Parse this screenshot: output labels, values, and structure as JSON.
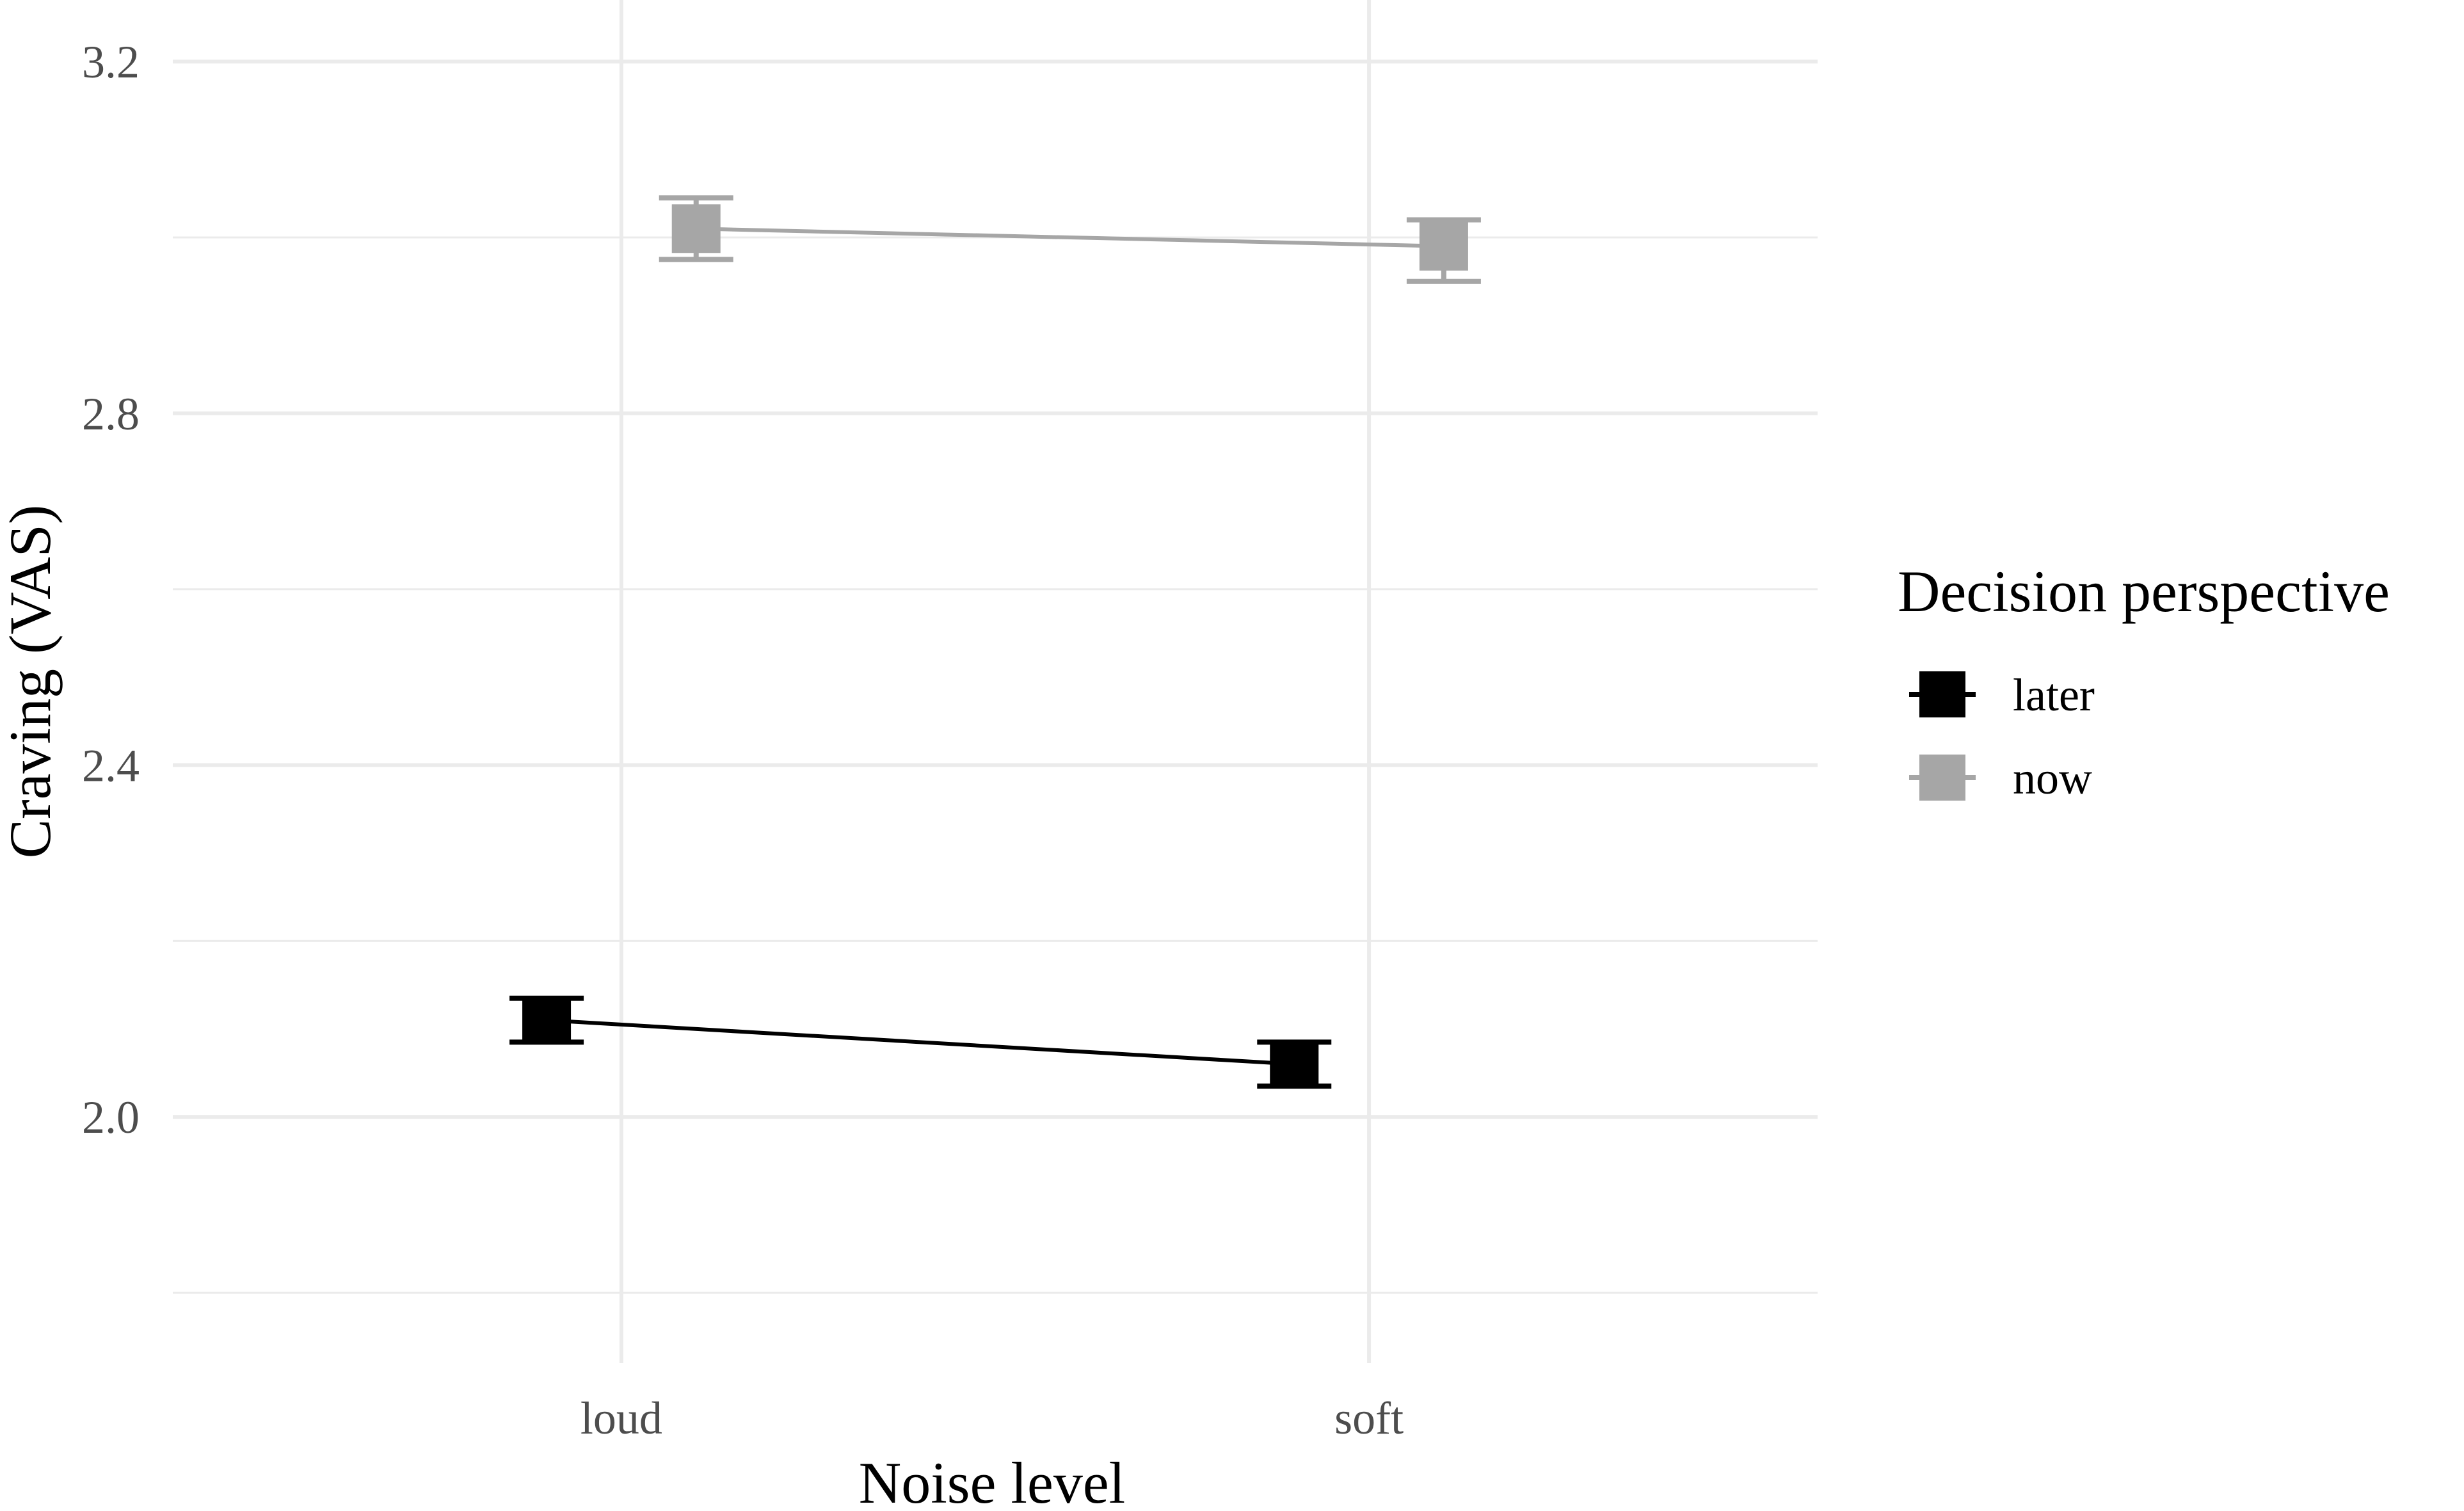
{
  "chart_data": {
    "type": "line",
    "xlabel": "Noise level",
    "ylabel": "Craving (VAS)",
    "categories": [
      "loud",
      "soft"
    ],
    "ylim": [
      1.72,
      3.27
    ],
    "y_major_ticks": [
      2.0,
      2.4,
      2.8,
      3.2
    ],
    "y_tick_labels": [
      "2.0",
      "2.4",
      "2.8",
      "3.2"
    ],
    "y_minor_ticks": [
      1.8,
      2.2,
      2.6,
      3.0
    ],
    "grid": true,
    "legend": {
      "title": "Decision perspective",
      "position": "right"
    },
    "series": [
      {
        "name": "later",
        "color": "#000000",
        "dodge": -0.1,
        "values": [
          2.11,
          2.06
        ],
        "error_low": [
          2.085,
          2.035
        ],
        "error_high": [
          2.135,
          2.085
        ]
      },
      {
        "name": "now",
        "color": "#a6a6a6",
        "dodge": 0.1,
        "values": [
          3.01,
          2.99
        ],
        "error_low": [
          2.975,
          2.95
        ],
        "error_high": [
          3.045,
          3.02
        ]
      }
    ]
  }
}
